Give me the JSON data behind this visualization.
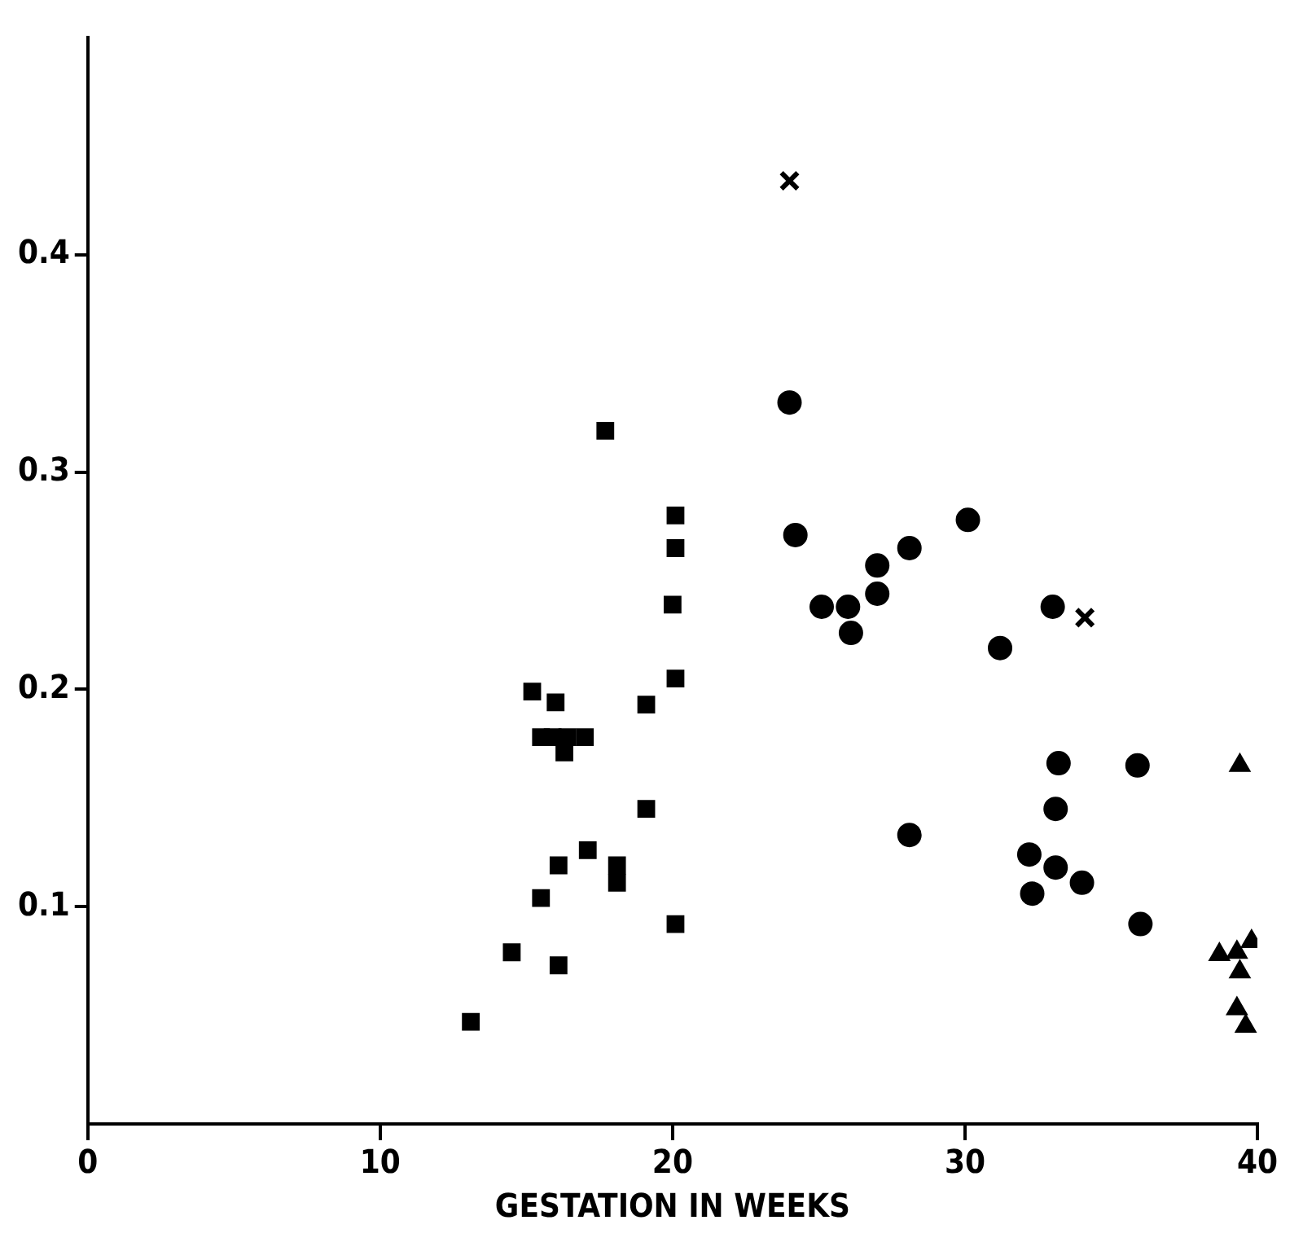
{
  "chart_data": {
    "type": "scatter",
    "xlabel": "GESTATION IN WEEKS",
    "xlim": [
      0,
      40
    ],
    "xticks": [
      0,
      10,
      20,
      30,
      40
    ],
    "ylim": [
      0,
      0.5
    ],
    "yticks": [
      0.1,
      0.2,
      0.3,
      0.4
    ],
    "grid": false,
    "legend": false,
    "series": [
      {
        "color": "#000000",
        "marker": "square",
        "x": [
          17.7,
          20.1,
          20.1,
          20.0,
          20.1,
          15.2,
          16.0,
          19.1,
          15.5,
          15.9,
          16.4,
          17.0,
          16.3,
          19.1,
          17.1,
          16.1,
          18.1,
          18.1,
          15.5,
          20.1,
          14.5,
          16.1,
          13.1
        ],
        "values": [
          0.319,
          0.28,
          0.265,
          0.239,
          0.205,
          0.199,
          0.194,
          0.193,
          0.178,
          0.178,
          0.178,
          0.178,
          0.171,
          0.145,
          0.126,
          0.119,
          0.119,
          0.111,
          0.104,
          0.092,
          0.079,
          0.073,
          0.047
        ]
      },
      {
        "color": "#000000",
        "marker": "circle",
        "x": [
          24.0,
          24.2,
          25.1,
          26.0,
          26.1,
          27.0,
          27.0,
          28.1,
          30.1,
          33.0,
          31.2,
          33.2,
          35.9,
          33.1,
          32.2,
          33.1,
          34.0,
          32.3,
          36.0,
          28.1
        ],
        "values": [
          0.332,
          0.271,
          0.238,
          0.238,
          0.226,
          0.244,
          0.257,
          0.265,
          0.278,
          0.238,
          0.219,
          0.166,
          0.165,
          0.145,
          0.124,
          0.118,
          0.111,
          0.106,
          0.092,
          0.133
        ]
      },
      {
        "color": "#000000",
        "marker": "cross",
        "x": [
          24.0,
          34.1
        ],
        "values": [
          0.434,
          0.233
        ]
      },
      {
        "color": "#000000",
        "marker": "triangle",
        "x": [
          39.4,
          38.7,
          39.3,
          39.8,
          39.4,
          39.3,
          39.6
        ],
        "values": [
          0.165,
          0.078,
          0.079,
          0.084,
          0.07,
          0.053,
          0.045
        ]
      }
    ]
  }
}
